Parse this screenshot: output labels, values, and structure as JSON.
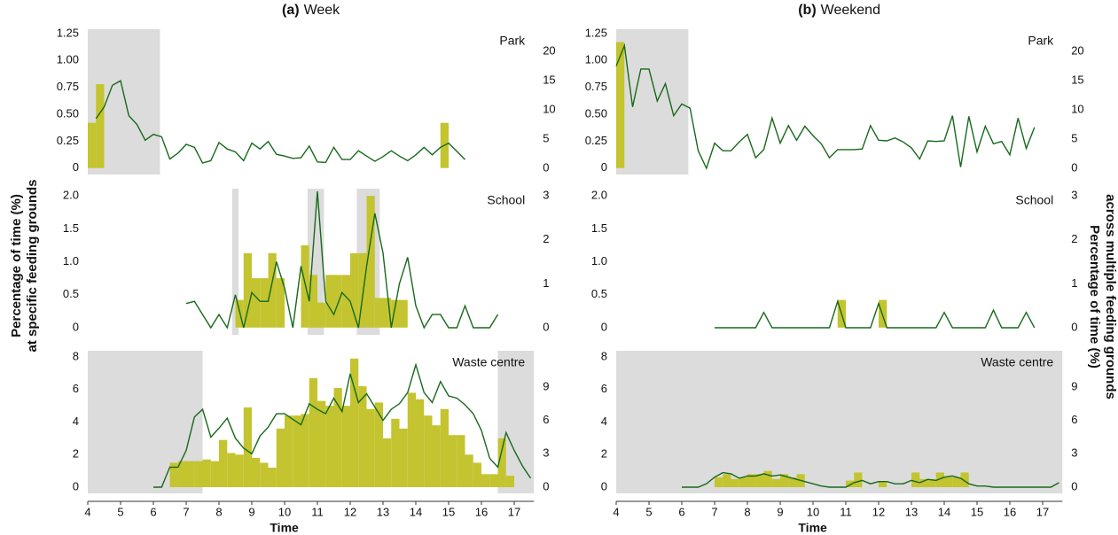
{
  "chart_data": [
    {
      "type": "combo",
      "label": "(a)",
      "title": "Week",
      "panel": "Park",
      "xlim": [
        4,
        17.6
      ],
      "ylim": [
        -0.06,
        1.29
      ],
      "yticks": [
        0,
        0.25,
        {
          "value": 0.5,
          "label": "0.50"
        },
        0.75,
        {
          "value": 1,
          "label": "1.00"
        },
        1.25
      ],
      "y2lim": [
        -1.06,
        23.8
      ],
      "y2ticks": [
        0,
        5,
        10,
        15,
        20
      ],
      "shaded": [
        [
          4.0,
          6.2
        ]
      ],
      "shade_color": "#dcdcdc",
      "bars": {
        "color": "#c3c42f",
        "x": [
          4.0,
          4.25,
          14.75
        ],
        "values": [
          0.42,
          0.78,
          0.42
        ]
      },
      "line": {
        "color": "#17691b",
        "axis": "y2",
        "x": [
          4.25,
          4.5,
          4.75,
          5,
          5.25,
          5.5,
          5.75,
          6,
          6.25,
          6.5,
          6.75,
          7,
          7.25,
          7.5,
          7.75,
          8,
          8.25,
          8.5,
          8.75,
          9,
          9.25,
          9.5,
          9.75,
          10,
          10.25,
          10.5,
          10.75,
          11,
          11.25,
          11.5,
          11.75,
          12,
          12.25,
          12.5,
          12.75,
          13,
          13.25,
          13.5,
          13.75,
          14,
          14.25,
          14.5,
          14.75,
          15,
          15.25,
          15.5
        ],
        "values": [
          8.5,
          10.5,
          14.2,
          15,
          9,
          7.5,
          4.8,
          5.8,
          5.4,
          1.6,
          2.6,
          4.1,
          3.6,
          0.9,
          1.3,
          4.4,
          3.3,
          2.8,
          1.3,
          4.3,
          3.3,
          4.6,
          2.4,
          2.1,
          1.7,
          1.8,
          3.8,
          1.1,
          1.0,
          3.6,
          1.5,
          1.5,
          3.0,
          2.1,
          1.2,
          2.0,
          3.0,
          2.1,
          1.3,
          2.3,
          3.6,
          2.3,
          3.6,
          4.3,
          2.9,
          1.5
        ]
      }
    },
    {
      "type": "combo",
      "panel": "School",
      "ylabel": [
        "Percentage of time (%)",
        "at specific feeding grounds"
      ],
      "xlim": [
        4,
        17.6
      ],
      "ylim": [
        -0.11,
        2.11
      ],
      "yticks": [
        0,
        0.5,
        {
          "value": 1,
          "label": "1.0"
        },
        1.5,
        {
          "value": 2,
          "label": "2.0"
        }
      ],
      "y2lim": [
        -0.16,
        3.16
      ],
      "y2ticks": [
        0,
        1,
        2,
        3
      ],
      "shaded": [
        [
          8.4,
          8.6
        ],
        [
          10.7,
          11.2
        ],
        [
          12.2,
          12.9
        ]
      ],
      "shade_color": "#dcdcdc",
      "bars": {
        "color": "#c3c42f",
        "x": [
          8.5,
          8.75,
          9.0,
          9.25,
          9.5,
          9.75,
          10.5,
          10.75,
          11.0,
          11.25,
          11.5,
          11.75,
          12.0,
          12.25,
          12.5,
          12.75,
          13.0,
          13.25,
          13.5
        ],
        "values": [
          0.42,
          1.13,
          0.75,
          0.75,
          1.13,
          0.75,
          1.25,
          0.8,
          0.38,
          0.8,
          0.8,
          0.8,
          1.13,
          1.13,
          2.0,
          0.45,
          0.45,
          0.42,
          0.42
        ]
      },
      "line": {
        "color": "#17691b",
        "axis": "y2",
        "x": [
          7,
          7.25,
          7.5,
          7.75,
          8,
          8.25,
          8.5,
          8.75,
          9,
          9.25,
          9.5,
          9.75,
          10,
          10.25,
          10.5,
          10.75,
          11,
          11.25,
          11.5,
          11.75,
          12,
          12.25,
          12.5,
          12.75,
          13,
          13.25,
          13.5,
          13.75,
          14,
          14.25,
          14.5,
          14.75,
          15,
          15.25,
          15.5,
          15.75,
          16,
          16.25,
          16.5
        ],
        "values": [
          0.55,
          0.6,
          0.3,
          0,
          0.3,
          0,
          0.75,
          0,
          0.8,
          0.6,
          0.6,
          1.5,
          0.9,
          0,
          1.4,
          0.6,
          3.1,
          0.6,
          0.3,
          0.8,
          0.6,
          0,
          1.4,
          2.6,
          1.7,
          0,
          1.0,
          1.6,
          0.5,
          0,
          0.3,
          0.3,
          0,
          0,
          0.5,
          0,
          0,
          0,
          0.3
        ]
      }
    },
    {
      "type": "combo",
      "panel": "Waste centre",
      "xlabel": "Time",
      "xlim": [
        4,
        17.6
      ],
      "xticks": [
        4,
        5,
        6,
        7,
        8,
        9,
        10,
        11,
        12,
        13,
        14,
        15,
        16,
        17
      ],
      "ylim": [
        -0.38,
        8.38
      ],
      "yticks": [
        0,
        2,
        4,
        6,
        8
      ],
      "y2lim": [
        -0.56,
        12.26
      ],
      "y2ticks": [
        0,
        3,
        6,
        9
      ],
      "shaded": [
        [
          4.0,
          7.5
        ],
        [
          16.5,
          17.6
        ]
      ],
      "shade_color": "#dcdcdc",
      "bars": {
        "color": "#c3c42f",
        "x": [
          6.5,
          6.75,
          7,
          7.25,
          7.5,
          7.75,
          8,
          8.25,
          8.5,
          8.75,
          9,
          9.25,
          9.5,
          9.75,
          10,
          10.25,
          10.5,
          10.75,
          11,
          11.25,
          11.5,
          11.75,
          12,
          12.25,
          12.5,
          12.75,
          13,
          13.25,
          13.5,
          13.75,
          14,
          14.25,
          14.5,
          14.75,
          15,
          15.25,
          15.5,
          15.75,
          16,
          16.25,
          16.5,
          16.75
        ],
        "values": [
          1.5,
          1.6,
          1.6,
          1.6,
          1.7,
          1.6,
          2.9,
          2.1,
          2.0,
          4.9,
          1.8,
          1.5,
          1.2,
          3.6,
          4.4,
          4.4,
          4.5,
          6.7,
          5.3,
          5.0,
          6.1,
          5.0,
          7.9,
          6.2,
          4.8,
          5.2,
          3.0,
          4.2,
          3.6,
          5.8,
          5.4,
          4.4,
          3.8,
          4.8,
          3.2,
          3.2,
          2.0,
          1.5,
          0.8,
          0.8,
          3.0,
          0.7
        ]
      },
      "line": {
        "color": "#17691b",
        "axis": "y2",
        "x": [
          6,
          6.25,
          6.5,
          6.75,
          7,
          7.25,
          7.5,
          7.75,
          8,
          8.25,
          8.5,
          8.75,
          9,
          9.25,
          9.5,
          9.75,
          10,
          10.25,
          10.5,
          10.75,
          11,
          11.25,
          11.5,
          11.75,
          12,
          12.25,
          12.5,
          12.75,
          13,
          13.25,
          13.5,
          13.75,
          14,
          14.25,
          14.5,
          14.75,
          15,
          15.25,
          15.5,
          15.75,
          16,
          16.25,
          16.5,
          16.75,
          17,
          17.25,
          17.5
        ],
        "values": [
          0,
          0,
          1.8,
          1.8,
          3.3,
          6.3,
          7.0,
          4.5,
          5.3,
          6.2,
          4.4,
          3.5,
          3.0,
          4.6,
          5.4,
          6.6,
          6.6,
          6.1,
          5.6,
          7.5,
          7.0,
          6.6,
          8.0,
          6.8,
          10.2,
          7.6,
          8.4,
          7.2,
          6.0,
          7.0,
          7.5,
          8.5,
          11.0,
          8.5,
          7.6,
          9.5,
          8.2,
          8.0,
          7.4,
          6.6,
          5.1,
          2.6,
          1.8,
          4.9,
          3.3,
          1.9,
          0.8
        ]
      }
    },
    {
      "type": "combo",
      "label": "(b)",
      "title": "Weekend",
      "panel": "Park",
      "xlim": [
        4,
        17.6
      ],
      "ylim": [
        -0.06,
        1.29
      ],
      "yticks": [
        0,
        0.25,
        {
          "value": 0.5,
          "label": "0.50"
        },
        0.75,
        {
          "value": 1,
          "label": "1.00"
        },
        1.25
      ],
      "y2lim": [
        -1.06,
        23.8
      ],
      "y2ticks": [
        0,
        5,
        10,
        15,
        20
      ],
      "shaded": [
        [
          4.0,
          6.2
        ]
      ],
      "shade_color": "#dcdcdc",
      "bars": {
        "color": "#c3c42f",
        "x": [
          4.0
        ],
        "values": [
          1.17
        ]
      },
      "line": {
        "color": "#17691b",
        "axis": "y2",
        "x": [
          4,
          4.25,
          4.5,
          4.75,
          5,
          5.25,
          5.5,
          5.75,
          6,
          6.25,
          6.5,
          6.75,
          7,
          7.25,
          7.5,
          7.75,
          8,
          8.25,
          8.5,
          8.75,
          9,
          9.25,
          9.5,
          9.75,
          10,
          10.25,
          10.5,
          10.75,
          11,
          11.25,
          11.5,
          11.75,
          12,
          12.25,
          12.5,
          12.75,
          13,
          13.25,
          13.5,
          13.75,
          14,
          14.25,
          14.5,
          14.75,
          15,
          15.25,
          15.5,
          15.75,
          16,
          16.25,
          16.5,
          16.75
        ],
        "values": [
          17.5,
          21,
          10.5,
          17,
          17,
          11.5,
          14.5,
          9,
          11,
          10.3,
          3,
          0,
          4.3,
          3,
          3,
          4.5,
          5.8,
          1.8,
          3.2,
          8.6,
          4.3,
          7.3,
          4.8,
          7.2,
          5.6,
          4.2,
          1.8,
          3.2,
          3.2,
          3.2,
          3.3,
          7.3,
          4.8,
          4.7,
          5.2,
          4.5,
          3.5,
          1.6,
          4.7,
          4.6,
          4.7,
          9.0,
          0.2,
          8.9,
          2.8,
          7.2,
          4.2,
          4.6,
          2.3,
          8.6,
          3.4,
          7.0
        ]
      }
    },
    {
      "type": "combo",
      "panel": "School",
      "y2label": [
        "Percentage of time (%)",
        "across multiple feeding grounds"
      ],
      "xlim": [
        4,
        17.6
      ],
      "ylim": [
        -0.11,
        2.11
      ],
      "yticks": [
        0,
        0.5,
        {
          "value": 1,
          "label": "1.0"
        },
        1.5,
        {
          "value": 2,
          "label": "2.0"
        }
      ],
      "y2lim": [
        -0.16,
        3.16
      ],
      "y2ticks": [
        0,
        1,
        2,
        3
      ],
      "shaded": [],
      "shade_color": "#dcdcdc",
      "bars": {
        "color": "#c3c42f",
        "x": [
          10.75,
          12.0
        ],
        "values": [
          0.42,
          0.42
        ]
      },
      "line": {
        "color": "#17691b",
        "axis": "y2",
        "x": [
          7,
          7.25,
          7.5,
          7.75,
          8,
          8.25,
          8.5,
          8.75,
          9,
          9.25,
          9.5,
          9.75,
          10,
          10.25,
          10.5,
          10.75,
          11,
          11.25,
          11.5,
          11.75,
          12,
          12.25,
          12.5,
          12.75,
          13,
          13.25,
          13.5,
          13.75,
          14,
          14.25,
          14.5,
          14.75,
          15,
          15.25,
          15.5,
          15.75,
          16,
          16.25,
          16.5,
          16.75
        ],
        "values": [
          0,
          0,
          0,
          0,
          0,
          0,
          0.35,
          0,
          0,
          0,
          0,
          0,
          0,
          0,
          0,
          0.6,
          0,
          0,
          0,
          0,
          0.55,
          0,
          0,
          0,
          0,
          0,
          0,
          0,
          0.35,
          0,
          0,
          0,
          0,
          0,
          0.4,
          0,
          0,
          0,
          0.35,
          0
        ]
      }
    },
    {
      "type": "combo",
      "panel": "Waste centre",
      "xlabel": "Time",
      "xlim": [
        4,
        17.6
      ],
      "xticks": [
        4,
        5,
        6,
        7,
        8,
        9,
        10,
        11,
        12,
        13,
        14,
        15,
        16,
        17
      ],
      "ylim": [
        -0.38,
        8.38
      ],
      "yticks": [
        0,
        2,
        4,
        6,
        8
      ],
      "y2lim": [
        -0.56,
        12.26
      ],
      "y2ticks": [
        0,
        3,
        6,
        9
      ],
      "shaded": [
        [
          4.0,
          17.6
        ]
      ],
      "shade_color": "#dcdcdc",
      "bars": {
        "color": "#c3c42f",
        "x": [
          7,
          7.25,
          7.5,
          7.75,
          8,
          8.25,
          8.5,
          8.75,
          9,
          9.25,
          9.5,
          11,
          11.25,
          12,
          13,
          13.25,
          13.5,
          13.75,
          14,
          14.25,
          14.5
        ],
        "values": [
          0.6,
          0.8,
          0.5,
          0.6,
          0.8,
          0.8,
          1.0,
          0.5,
          0.8,
          0.6,
          0.8,
          0.4,
          0.9,
          0.35,
          0.9,
          0.5,
          0.5,
          0.9,
          0.6,
          0.6,
          0.9
        ]
      },
      "line": {
        "color": "#17691b",
        "axis": "y2",
        "x": [
          6,
          6.25,
          6.5,
          6.75,
          7,
          7.25,
          7.5,
          7.75,
          8,
          8.25,
          8.5,
          8.75,
          9,
          9.25,
          9.5,
          9.75,
          10,
          10.25,
          10.5,
          10.75,
          11,
          11.25,
          11.5,
          11.75,
          12,
          12.25,
          12.5,
          12.75,
          13,
          13.25,
          13.5,
          13.75,
          14,
          14.25,
          14.5,
          14.75,
          15,
          15.25,
          15.5,
          15.75,
          16,
          16.25,
          16.5,
          16.75,
          17,
          17.25,
          17.5
        ],
        "values": [
          0,
          0,
          0,
          0.3,
          0.9,
          1.3,
          1.2,
          0.8,
          1.0,
          1.0,
          1.2,
          1.0,
          1.1,
          0.9,
          0.7,
          0.5,
          0.3,
          0.1,
          0,
          0,
          0,
          0.4,
          0.6,
          0.3,
          0.5,
          0.5,
          0.3,
          0.3,
          0.6,
          0.4,
          0.7,
          0.6,
          0.9,
          1.0,
          0.8,
          0.3,
          0.1,
          0.1,
          0,
          0,
          0,
          0,
          0,
          0,
          0,
          0,
          0.4
        ]
      }
    }
  ]
}
